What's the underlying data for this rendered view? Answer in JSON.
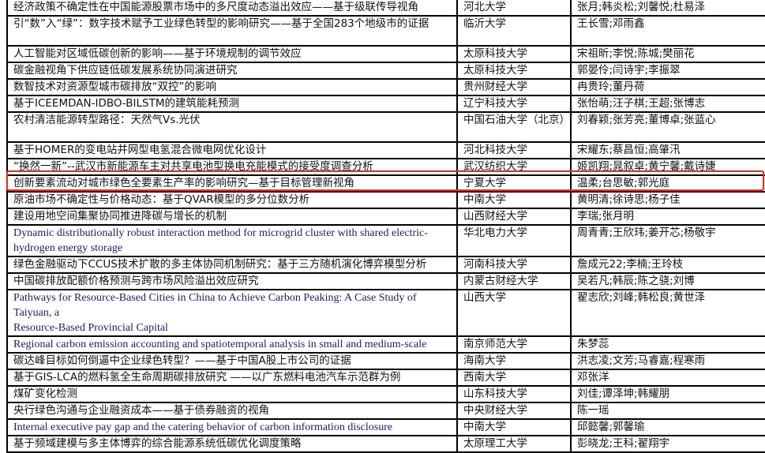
{
  "highlight_color": "#e0302a",
  "highlighted_row": 9,
  "rows": [
    {
      "title": "经济政策不确定性在中国能源股票市场中的多尺度动态溢出效应——基于级联传导视角",
      "university": "河北大学",
      "authors": "张月;韩炎松;刘馨悦;杜易泽"
    },
    {
      "title": "引“数”入“绿”：数字技术赋予工业绿色转型的影响研究——基于全国283个地级市的证据",
      "university": "临沂大学",
      "authors": "王长雪;邓雨鑫"
    },
    {
      "title": "人工智能对区域低碳创新的影响——基于环境规制的调节效应",
      "university": "太原科技大学",
      "authors": "宋祖昕;李悦;陈城;樊丽花"
    },
    {
      "title": "碳金融视角下供应链低碳发展系统协同演进研究",
      "university": "太原科技大学",
      "authors": "郭晏伶;闫诗宇;李振翠"
    },
    {
      "title": "数智技术对资源型城市碳排放“双控”的影响",
      "university": "贵州财经大学",
      "authors": "冉贵玲;董丹荷"
    },
    {
      "title": "基于ICEEMDAN-IDBO-BILSTM的建筑能耗预测",
      "university": "辽宁科技大学",
      "authors": "张怡萌;汪子棋;王超;张博志"
    },
    {
      "title": "农村清洁能源转型路径：天然气Vs.光伏",
      "university": "中国石油大学（北京）",
      "authors": "刘春颖;张芳亮;董博卓;张蓝心"
    },
    {
      "title": "基于HOMER的变电站并网型电氢混合微电网优化设计",
      "university": "河北科技大学",
      "authors": "宋耀东;蔡昌恒;高肇汛"
    },
    {
      "title": "“换然一新”--武汉市新能源车主对共享电池型换电充能模式的接受度调查分析",
      "university": "武汉纺织大学",
      "authors": "姬凯翔;晁叙卓;黄宁馨;戴诗婕"
    },
    {
      "title": "创新要素流动对城市绿色全要素生产率的影响研究—基于目标管理新视角",
      "university": "宁夏大学",
      "authors": "温柔;台思敏;郭光庭"
    },
    {
      "title": "原油市场不确定性与价格动态：基于QVAR模型的多分位数分析",
      "university": "中南大学",
      "authors": "黄明清;徐诗思;杨子佳"
    },
    {
      "title": "建设用地空间集聚协同推进降碳与增长的机制",
      "university": "山西财经大学",
      "authors": "李瑞;张月明"
    },
    {
      "title": "Dynamic distributionally robust interaction method for microgrid cluster with shared electric-hydrogen energy storage",
      "university": "华北电力大学",
      "authors": "周青青;王欣玮;姜开芯;杨敬宇"
    },
    {
      "title": "绿色金融驱动下CCUS技术扩散的多主体协同机制研究：基于三方随机演化博弈模型分析",
      "university": "河南科技大学",
      "authors": "詹成元22;李楠;王玲枝"
    },
    {
      "title": "中国碳排放配额价格预测与跨市场风险溢出效应研究",
      "university": "内蒙古财经大学",
      "authors": "吴若凡;韩辰;陈之骁;刘博"
    },
    {
      "title": "Pathways for Resource-Based Cities in China to Achieve Carbon Peaking: A Case Study of Taiyuan, a\nResource-Based Provincial Capital",
      "university": "山西大学",
      "authors": "翟志欣;刘峰;韩松良;黄世泽"
    },
    {
      "title": "Regional carbon emission accounting and spatiotemporal analysis in small and medium-scale",
      "university": "南京师范大学",
      "authors": "朱梦蕊"
    },
    {
      "title": "碳达峰目标如何倒逼中企业绿色转型？——基于中国A股上市公司的证据",
      "university": "海南大学",
      "authors": "洪志凌;文芳;马睿嘉;程寒雨"
    },
    {
      "title": "基于GIS-LCA的燃料氢全生命周期碳排放研究 ——以广东燃料电池汽车示范群为例",
      "university": "西南大学",
      "authors": "邓张洋"
    },
    {
      "title": "煤矿变化检测",
      "university": "山东科技大学",
      "authors": "刘佳;谭泽坤;韩耀朋"
    },
    {
      "title": "央行绿色沟通与企业融资成本——基于债券融资的视角",
      "university": "中央财经大学",
      "authors": "陈一瑶"
    },
    {
      "title": "Internal executive pay gap and the catering behavior of carbon information disclosure",
      "university": "中南大学",
      "authors": "邱懿馨;郭馨瑜"
    },
    {
      "title": "基于频域建模与多主体博弈的综合能源系统低碳优化调度策略",
      "university": "太原理工大学",
      "authors": "彭晓龙;王科;翟翔宇"
    }
  ]
}
